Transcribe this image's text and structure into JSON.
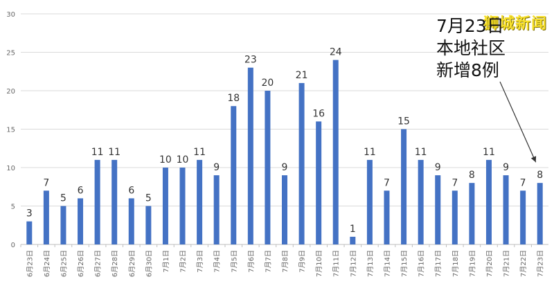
{
  "brand": "狮城新闻",
  "annotation": {
    "line1": "7月23日",
    "line2": "本地社区",
    "line3": "新增8例"
  },
  "colors": {
    "bar": "#4472c4",
    "grid": "#d9d9d9",
    "axis": "#bfbfbf",
    "tick_text": "#666666",
    "label_text": "#333333"
  },
  "chart_data": {
    "type": "bar",
    "title": "",
    "xlabel": "",
    "ylabel": "",
    "ylim": [
      0,
      30
    ],
    "yticks": [
      0,
      5,
      10,
      15,
      20,
      25,
      30
    ],
    "grid": true,
    "legend": "none",
    "categories": [
      "6月23日",
      "6月24日",
      "6月25日",
      "6月26日",
      "6月27日",
      "6月28日",
      "6月29日",
      "6月30日",
      "7月1日",
      "7月2日",
      "7月3日",
      "7月4日",
      "7月5日",
      "7月6日",
      "7月7日",
      "7月8日",
      "7月9日",
      "7月10日",
      "7月11日",
      "7月12日",
      "7月13日",
      "7月14日",
      "7月15日",
      "7月16日",
      "7月17日",
      "7月18日",
      "7月19日",
      "7月20日",
      "7月21日",
      "7月22日",
      "7月23日"
    ],
    "values": [
      3,
      7,
      5,
      6,
      11,
      11,
      6,
      5,
      10,
      10,
      11,
      9,
      18,
      23,
      20,
      9,
      21,
      16,
      24,
      1,
      11,
      7,
      15,
      11,
      9,
      7,
      8,
      11,
      9,
      7,
      8
    ]
  }
}
